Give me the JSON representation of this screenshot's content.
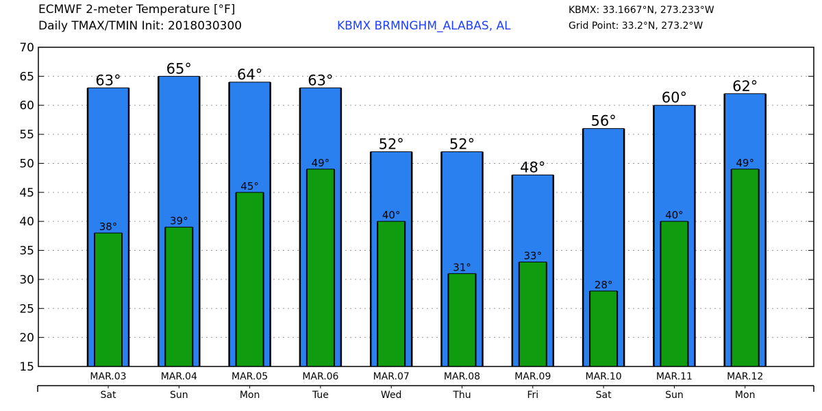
{
  "header": {
    "title_line1": "ECMWF 2-meter Temperature [°F]",
    "title_line2": "Daily TMAX/TMIN Init: 2018030300",
    "station": "KBMX BRMNGHM_ALABAS, AL",
    "coord_line1": "KBMX: 33.1667°N, 273.233°W",
    "coord_line2": "Grid Point: 33.2°N, 273.2°W"
  },
  "colors": {
    "tmax": "#2b80f0",
    "tmin": "#0f9c0f",
    "edge": "#000000",
    "grid": "#9a9a9a"
  },
  "chart_data": {
    "type": "bar",
    "title": "ECMWF 2-meter Temperature [°F]",
    "categories": [
      "MAR.03",
      "MAR.04",
      "MAR.05",
      "MAR.06",
      "MAR.07",
      "MAR.08",
      "MAR.09",
      "MAR.10",
      "MAR.11",
      "MAR.12"
    ],
    "weekdays": [
      "Sat",
      "Sun",
      "Mon",
      "Tue",
      "Wed",
      "Thu",
      "Fri",
      "Sat",
      "Sun",
      "Mon"
    ],
    "series": [
      {
        "name": "TMAX",
        "values": [
          63,
          65,
          64,
          63,
          52,
          52,
          48,
          56,
          60,
          62
        ],
        "labels": [
          "63°",
          "65°",
          "64°",
          "63°",
          "52°",
          "52°",
          "48°",
          "56°",
          "60°",
          "62°"
        ]
      },
      {
        "name": "TMIN",
        "values": [
          38,
          39,
          45,
          49,
          40,
          31,
          33,
          28,
          40,
          49
        ],
        "labels": [
          "38°",
          "39°",
          "45°",
          "49°",
          "40°",
          "31°",
          "33°",
          "28°",
          "40°",
          "49°"
        ]
      }
    ],
    "ylim": [
      15,
      70
    ],
    "yticks": [
      15,
      20,
      25,
      30,
      35,
      40,
      45,
      50,
      55,
      60,
      65,
      70
    ],
    "grid": true,
    "legend": "none"
  }
}
